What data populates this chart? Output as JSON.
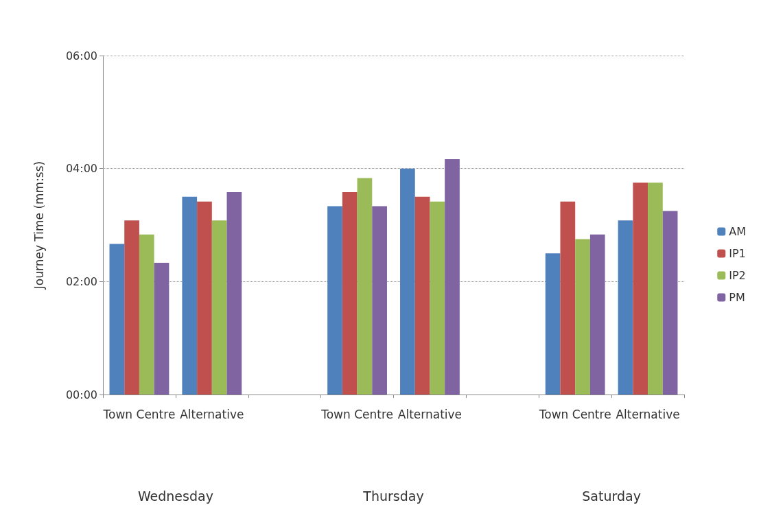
{
  "chart_data": {
    "type": "bar",
    "ylabel": "Journey Time (mm:ss)",
    "categories": [
      "Town Centre",
      "Alternative",
      null,
      "Town Centre",
      "Alternative",
      null,
      "Town Centre",
      "Alternative"
    ],
    "series": [
      {
        "name": "AM",
        "color": "#4f81bd",
        "values": [
          160,
          210,
          null,
          200,
          240,
          null,
          150,
          185
        ]
      },
      {
        "name": "IP1",
        "color": "#c0504d",
        "values": [
          185,
          205,
          null,
          215,
          210,
          null,
          205,
          225
        ]
      },
      {
        "name": "IP2",
        "color": "#9bbb59",
        "values": [
          170,
          185,
          null,
          230,
          205,
          null,
          165,
          225
        ]
      },
      {
        "name": "PM",
        "color": "#8064a2",
        "values": [
          140,
          215,
          null,
          200,
          250,
          null,
          170,
          195
        ]
      }
    ],
    "ylim": [
      0,
      360
    ],
    "yticks": [
      {
        "value": 0,
        "label": "00:00"
      },
      {
        "value": 120,
        "label": "02:00"
      },
      {
        "value": 240,
        "label": "04:00"
      },
      {
        "value": 360,
        "label": "06:00"
      }
    ],
    "grid": "y",
    "legend": "right",
    "annotations": [
      "Wednesday",
      "Thursday",
      "Saturday"
    ]
  }
}
